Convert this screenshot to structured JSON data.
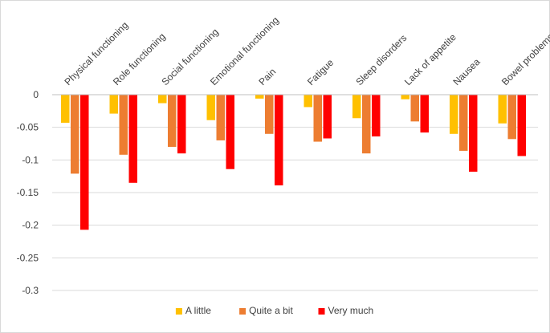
{
  "chart_data": {
    "type": "bar",
    "orientation": "vertical",
    "categories": [
      "Physical functioning",
      "Role functioning",
      "Social functioning",
      "Emotional functioning",
      "Pain",
      "Fatigue",
      "Sleep disorders",
      "Lack of appetite",
      "Nausea",
      "Bowel problems"
    ],
    "series": [
      {
        "name": "A little",
        "color": "#FFC000",
        "values": [
          -0.043,
          -0.029,
          -0.013,
          -0.039,
          -0.006,
          -0.019,
          -0.036,
          -0.007,
          -0.06,
          -0.044
        ]
      },
      {
        "name": "Quite a bit",
        "color": "#ED7D31",
        "values": [
          -0.121,
          -0.092,
          -0.08,
          -0.07,
          -0.06,
          -0.072,
          -0.09,
          -0.041,
          -0.086,
          -0.068
        ]
      },
      {
        "name": "Very much",
        "color": "#FF0000",
        "values": [
          -0.207,
          -0.135,
          -0.09,
          -0.114,
          -0.139,
          -0.067,
          -0.064,
          -0.058,
          -0.118,
          -0.094
        ]
      }
    ],
    "title": "",
    "xlabel": "",
    "ylabel": "",
    "ylim": [
      -0.3,
      0
    ],
    "yticks": [
      0,
      -0.05,
      -0.1,
      -0.15,
      -0.2,
      -0.25,
      -0.3
    ],
    "ytick_labels": [
      "0",
      "-0.05",
      "-0.1",
      "-0.15",
      "-0.2",
      "-0.25",
      "-0.3"
    ],
    "grid": "horizontal",
    "legend_position": "bottom-center",
    "category_label_position": "above-zero-rotated"
  }
}
